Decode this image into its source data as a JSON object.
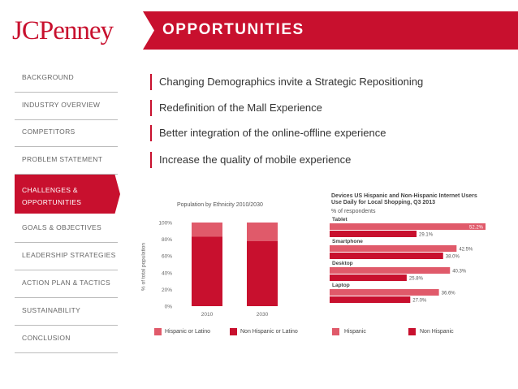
{
  "brand": {
    "logo_text": "JCPenney",
    "red": "#c8102e",
    "light_red": "#e05a6a"
  },
  "header": {
    "title": "OPPORTUNITIES"
  },
  "sidebar": {
    "items": [
      {
        "label": "BACKGROUND"
      },
      {
        "label": "INDUSTRY OVERVIEW"
      },
      {
        "label": "COMPETITORS"
      },
      {
        "label": "PROBLEM STATEMENT"
      },
      {
        "label_line1": "CHALLENGES &",
        "label_line2": "OPPORTUNITIES",
        "active": true
      },
      {
        "label": "GOALS & OBJECTIVES"
      },
      {
        "label": "LEADERSHIP STRATEGIES"
      },
      {
        "label": "ACTION PLAN & TACTICS"
      },
      {
        "label": "SUSTAINABILITY"
      },
      {
        "label": "CONCLUSION"
      }
    ]
  },
  "headlines": [
    "Changing Demographics invite a Strategic Repositioning",
    "Redefinition of the Mall Experience",
    "Better integration of the online-offline experience",
    "Increase the quality of mobile experience"
  ],
  "chart_data": [
    {
      "type": "bar",
      "stacked": true,
      "title": "Population by Ethnicity 2010/2030",
      "ylabel": "% of total population",
      "categories": [
        "2010",
        "2030"
      ],
      "ylim": [
        0,
        100
      ],
      "yticks": [
        "0%",
        "20%",
        "40%",
        "60%",
        "80%",
        "100%"
      ],
      "series": [
        {
          "name": "Non Hispanic or Latino",
          "values": [
            83,
            78
          ],
          "color": "#c8102e"
        },
        {
          "name": "Hispanic or Latino",
          "values": [
            17,
            22
          ],
          "color": "#e05a6a"
        }
      ],
      "legend": "bottom"
    },
    {
      "type": "bar",
      "orientation": "horizontal",
      "title_line1": "Devices US Hispanic and Non-Hispanic Internet Users",
      "title_line2": "Use Daily for Local Shopping, Q3 2013",
      "subtitle": "% of respondents",
      "categories": [
        "Tablet",
        "Smartphone",
        "Desktop",
        "Laptop"
      ],
      "series": [
        {
          "name": "Hispanic",
          "values": [
            52.2,
            42.5,
            40.3,
            36.6
          ],
          "labels": [
            "52.2%",
            "42.5%",
            "40.3%",
            "36.6%"
          ],
          "color": "#e05a6a"
        },
        {
          "name": "Non Hispanic",
          "values": [
            29.1,
            38.0,
            25.8,
            27.0
          ],
          "labels": [
            "29.1%",
            "38.0%",
            "25.8%",
            "27.0%"
          ],
          "color": "#c8102e"
        }
      ],
      "xlim": [
        0,
        52.2
      ],
      "legend": "bottom"
    }
  ]
}
